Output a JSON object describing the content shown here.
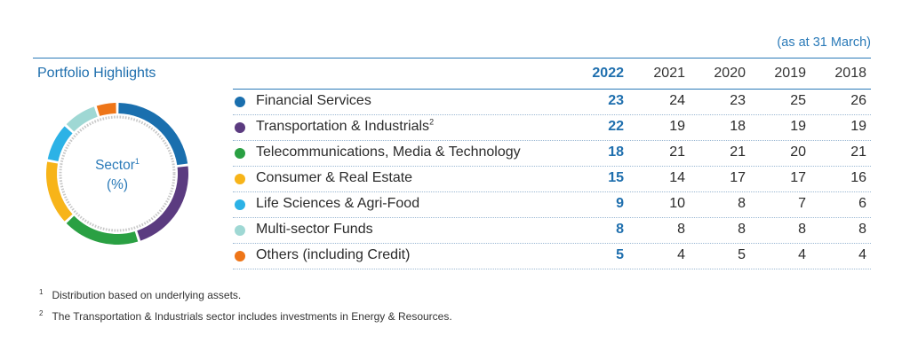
{
  "header": {
    "as_at": "(as at 31 March)",
    "title": "Portfolio Highlights"
  },
  "donut": {
    "label_line1": "Sector",
    "label_sup": "1",
    "label_line2": "(%)"
  },
  "chart_data": {
    "type": "table",
    "title": "Portfolio Highlights",
    "note": "(as at 31 March)",
    "years": [
      "2022",
      "2021",
      "2020",
      "2019",
      "2018"
    ],
    "highlight_year": "2022",
    "rows": [
      {
        "label": "Financial Services",
        "sup": "",
        "color": "#1a6fae",
        "values": [
          23,
          24,
          23,
          25,
          26
        ]
      },
      {
        "label": "Transportation & Industrials",
        "sup": "2",
        "color": "#5b3b80",
        "values": [
          22,
          19,
          18,
          19,
          19
        ]
      },
      {
        "label": "Telecommunications, Media & Technology",
        "sup": "",
        "color": "#2aa043",
        "values": [
          18,
          21,
          21,
          20,
          21
        ]
      },
      {
        "label": "Consumer & Real Estate",
        "sup": "",
        "color": "#f7b419",
        "values": [
          15,
          14,
          17,
          17,
          16
        ]
      },
      {
        "label": "Life Sciences & Agri-Food",
        "sup": "",
        "color": "#2cb2e6",
        "values": [
          9,
          10,
          8,
          7,
          6
        ]
      },
      {
        "label": "Multi-sector Funds",
        "sup": "",
        "color": "#9fd8d4",
        "values": [
          8,
          8,
          8,
          8,
          8
        ]
      },
      {
        "label": "Others (including Credit)",
        "sup": "",
        "color": "#ee7518",
        "values": [
          5,
          4,
          5,
          4,
          4
        ]
      }
    ]
  },
  "footnotes": [
    {
      "num": "1",
      "text": "Distribution based on underlying assets."
    },
    {
      "num": "2",
      "text": "The Transportation & Industrials sector includes investments in Energy & Resources."
    }
  ]
}
